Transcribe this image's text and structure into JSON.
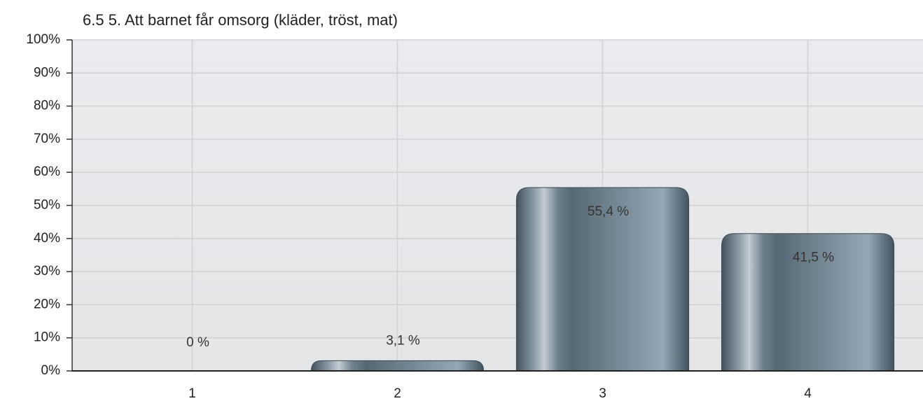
{
  "chart_data": {
    "type": "bar",
    "title": "6.5 5. Att barnet får omsorg (kläder, tröst, mat)",
    "categories": [
      "1",
      "2",
      "3",
      "4"
    ],
    "values": [
      0,
      3.1,
      55.4,
      41.5
    ],
    "value_labels": [
      "0 %",
      "3,1 %",
      "55,4 %",
      "41,5 %"
    ],
    "color": "#6b7f8c",
    "ylim": [
      0,
      100
    ],
    "yticks": [
      {
        "value": 0,
        "label": "0%"
      },
      {
        "value": 10,
        "label": "10%"
      },
      {
        "value": 20,
        "label": "20%"
      },
      {
        "value": 30,
        "label": "30%"
      },
      {
        "value": 40,
        "label": "40%"
      },
      {
        "value": 50,
        "label": "50%"
      },
      {
        "value": 60,
        "label": "60%"
      },
      {
        "value": 70,
        "label": "70%"
      },
      {
        "value": 80,
        "label": "80%"
      },
      {
        "value": 90,
        "label": "90%"
      },
      {
        "value": 100,
        "label": "100%"
      }
    ],
    "grid": true
  }
}
